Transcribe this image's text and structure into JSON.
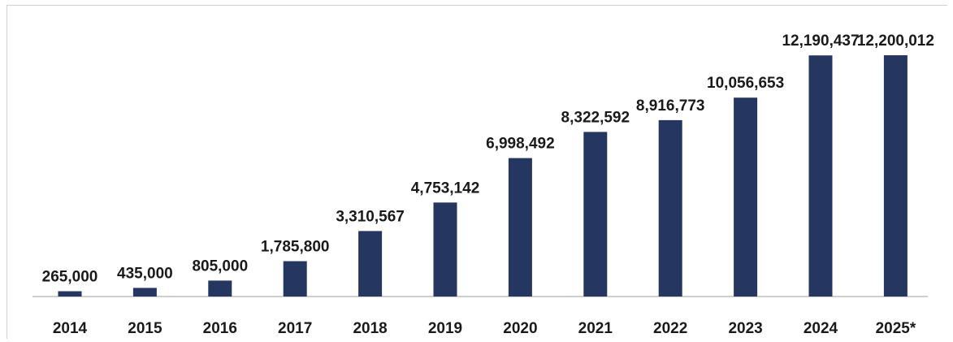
{
  "chart_data": {
    "type": "bar",
    "categories": [
      "2014",
      "2015",
      "2016",
      "2017",
      "2018",
      "2019",
      "2020",
      "2021",
      "2022",
      "2023",
      "2024",
      "2025*"
    ],
    "values": [
      265000,
      435000,
      805000,
      1785800,
      3310567,
      4753142,
      6998492,
      8322592,
      8916773,
      10056653,
      12190437,
      12200012
    ],
    "value_labels": [
      "265,000",
      "435,000",
      "805,000",
      "1,785,800",
      "3,310,567",
      "4,753,142",
      "6,998,492",
      "8,322,592",
      "8,916,773",
      "10,056,653",
      "12,190,437",
      "12,200,012"
    ],
    "title": "",
    "xlabel": "",
    "ylabel": "",
    "ylim": [
      0,
      13000000
    ],
    "grid": false,
    "legend": "none",
    "bar_color": "#253661",
    "axis_color": "#bfbfbf"
  }
}
